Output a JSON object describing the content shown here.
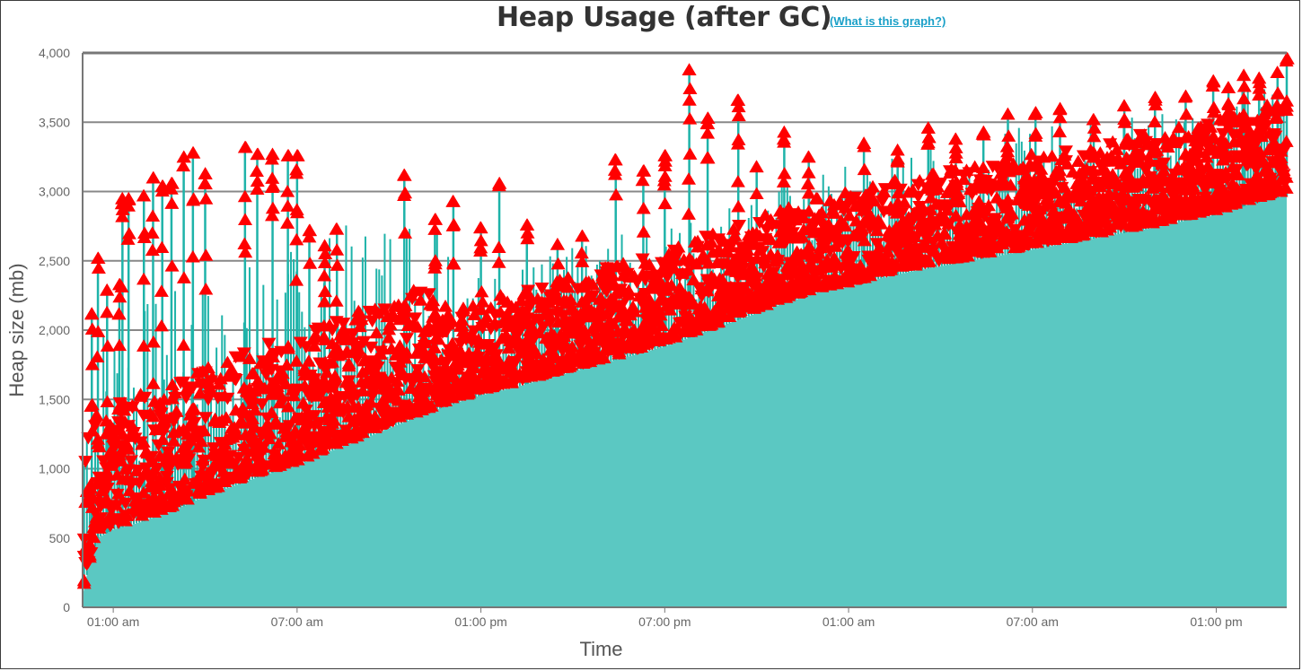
{
  "header": {
    "title": "Heap Usage (after GC)",
    "help_link": "(What is this graph?)"
  },
  "chart_data": {
    "type": "area",
    "title": "Heap Usage (after GC)",
    "xlabel": "Time",
    "ylabel": "Heap size (mb)",
    "ylim": [
      0,
      4000
    ],
    "y_ticks": [
      "0",
      "500",
      "1,000",
      "1,500",
      "2,000",
      "2,500",
      "3,000",
      "3,500",
      "4,000"
    ],
    "x_ticks": [
      "01:00 am",
      "07:00 am",
      "01:00 pm",
      "07:00 pm",
      "01:00 am",
      "07:00 am",
      "01:00 pm"
    ],
    "x_tick_hours": [
      1,
      7,
      13,
      19,
      25,
      31,
      37
    ],
    "xlim_hours": [
      0.0,
      39.3
    ],
    "grid": true,
    "colors": {
      "area": "#5bc8c2",
      "stem": "#1eb3a9",
      "marker": "#ff0000",
      "grid": "#888888"
    },
    "series": [
      {
        "name": "",
        "baseline_points": [
          [
            0.0,
            80
          ],
          [
            0.2,
            300
          ],
          [
            0.5,
            500
          ],
          [
            1.0,
            560
          ],
          [
            2.0,
            620
          ],
          [
            3.0,
            700
          ],
          [
            4.0,
            800
          ],
          [
            5.0,
            880
          ],
          [
            6.0,
            960
          ],
          [
            7.0,
            1020
          ],
          [
            8.0,
            1120
          ],
          [
            9.0,
            1200
          ],
          [
            10.0,
            1290
          ],
          [
            11.0,
            1380
          ],
          [
            12.0,
            1460
          ],
          [
            13.0,
            1530
          ],
          [
            14.0,
            1580
          ],
          [
            15.0,
            1640
          ],
          [
            16.0,
            1700
          ],
          [
            17.0,
            1760
          ],
          [
            18.0,
            1820
          ],
          [
            19.0,
            1880
          ],
          [
            20.0,
            1960
          ],
          [
            21.0,
            2040
          ],
          [
            22.0,
            2120
          ],
          [
            23.0,
            2200
          ],
          [
            24.0,
            2270
          ],
          [
            25.0,
            2310
          ],
          [
            26.0,
            2370
          ],
          [
            27.0,
            2420
          ],
          [
            28.0,
            2460
          ],
          [
            29.0,
            2500
          ],
          [
            30.0,
            2540
          ],
          [
            31.0,
            2580
          ],
          [
            32.0,
            2620
          ],
          [
            33.0,
            2660
          ],
          [
            34.0,
            2700
          ],
          [
            35.0,
            2740
          ],
          [
            36.0,
            2790
          ],
          [
            37.0,
            2830
          ],
          [
            38.0,
            2900
          ],
          [
            39.3,
            2970
          ]
        ],
        "peak_points": [
          [
            0.3,
            2120
          ],
          [
            0.5,
            2520
          ],
          [
            0.8,
            2290
          ],
          [
            1.2,
            2330
          ],
          [
            1.3,
            2950
          ],
          [
            1.5,
            2950
          ],
          [
            2.0,
            2970
          ],
          [
            2.3,
            3100
          ],
          [
            2.6,
            3040
          ],
          [
            2.9,
            3060
          ],
          [
            3.3,
            3250
          ],
          [
            3.6,
            3280
          ],
          [
            4.0,
            3130
          ],
          [
            5.3,
            3320
          ],
          [
            5.7,
            3270
          ],
          [
            6.2,
            3270
          ],
          [
            6.7,
            3260
          ],
          [
            7.0,
            3260
          ],
          [
            7.4,
            2720
          ],
          [
            7.9,
            2610
          ],
          [
            8.3,
            2730
          ],
          [
            10.5,
            3120
          ],
          [
            11.5,
            2800
          ],
          [
            12.1,
            2930
          ],
          [
            13.0,
            2740
          ],
          [
            13.6,
            3060
          ],
          [
            14.5,
            2760
          ],
          [
            15.5,
            2620
          ],
          [
            16.3,
            2680
          ],
          [
            17.4,
            3230
          ],
          [
            18.3,
            3150
          ],
          [
            19.0,
            3260
          ],
          [
            19.8,
            3880
          ],
          [
            20.4,
            3530
          ],
          [
            21.4,
            3660
          ],
          [
            22.0,
            3180
          ],
          [
            22.9,
            3430
          ],
          [
            23.7,
            3250
          ],
          [
            25.5,
            3350
          ],
          [
            26.6,
            3300
          ],
          [
            27.6,
            3460
          ],
          [
            28.5,
            3380
          ],
          [
            29.4,
            3430
          ],
          [
            30.2,
            3560
          ],
          [
            31.1,
            3570
          ],
          [
            31.9,
            3600
          ],
          [
            33.0,
            3520
          ],
          [
            34.0,
            3620
          ],
          [
            35.0,
            3680
          ],
          [
            36.0,
            3690
          ],
          [
            36.9,
            3800
          ],
          [
            37.4,
            3750
          ],
          [
            37.9,
            3840
          ],
          [
            38.4,
            3820
          ],
          [
            39.0,
            3860
          ],
          [
            39.3,
            3960
          ]
        ]
      }
    ]
  }
}
